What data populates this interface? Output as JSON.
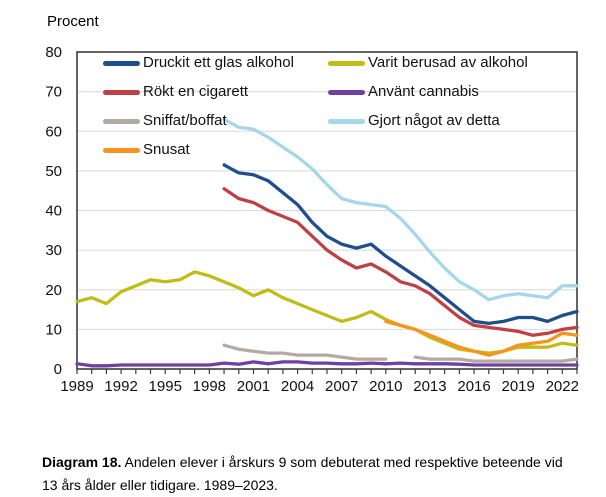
{
  "caption": {
    "label": "Diagram 18.",
    "text": " Andelen elever i årskurs 9 som debuterat med respektive beteende vid 13 års ålder eller tidigare. 1989–2023."
  },
  "colors": {
    "plot_border": "#3d3d3d",
    "gridline": "#d8d8d8",
    "axis_text": "#111111"
  },
  "chart_data": {
    "type": "line",
    "title": "",
    "xlabel": "",
    "ylabel": "Procent",
    "ylim": [
      0,
      80
    ],
    "y_ticks": [
      0,
      10,
      20,
      30,
      40,
      50,
      60,
      70,
      80
    ],
    "x": [
      1989,
      1990,
      1991,
      1992,
      1993,
      1994,
      1995,
      1996,
      1997,
      1998,
      1999,
      2000,
      2001,
      2002,
      2003,
      2004,
      2005,
      2006,
      2007,
      2008,
      2009,
      2010,
      2011,
      2012,
      2013,
      2014,
      2015,
      2016,
      2017,
      2018,
      2019,
      2020,
      2021,
      2022,
      2023
    ],
    "x_tick_labels": [
      1989,
      1992,
      1995,
      1998,
      2001,
      2004,
      2007,
      2010,
      2013,
      2016,
      2019,
      2022
    ],
    "grid": true,
    "legend_position": "top-left-inside",
    "series": [
      {
        "key": "druckit",
        "name": "Druckit ett glas alkohol",
        "color": "#1f4e8c",
        "values": [
          null,
          null,
          null,
          null,
          null,
          null,
          null,
          null,
          null,
          null,
          51.5,
          49.5,
          49,
          47.5,
          44.5,
          41.5,
          37,
          33.5,
          31.5,
          30.5,
          31.5,
          28.5,
          26,
          23.5,
          21,
          18,
          15,
          12,
          11.5,
          12,
          13,
          13,
          12,
          13.5,
          14.5
        ]
      },
      {
        "key": "rokt",
        "name": "Rökt en cigarett",
        "color": "#bf4045",
        "values": [
          null,
          null,
          null,
          null,
          null,
          null,
          null,
          null,
          null,
          null,
          45.5,
          43,
          42,
          40,
          38.5,
          37,
          33.5,
          30,
          27.5,
          25.5,
          26.5,
          24.5,
          22,
          21,
          19,
          16,
          13,
          11,
          10.5,
          10,
          9.5,
          8.5,
          9,
          10,
          10.5
        ]
      },
      {
        "key": "sniffat",
        "name": "Sniffat/boffat",
        "color": "#b3aaa2",
        "values": [
          null,
          null,
          null,
          null,
          null,
          null,
          null,
          null,
          null,
          null,
          6,
          5,
          4.5,
          4,
          4,
          3.5,
          3.5,
          3.5,
          3,
          2.5,
          2.5,
          2.5,
          null,
          3,
          2.5,
          2.5,
          2.5,
          2,
          2,
          2,
          2,
          2,
          2,
          2,
          2.5
        ]
      },
      {
        "key": "snusat",
        "name": "Snusat",
        "color": "#f7941d",
        "values": [
          null,
          null,
          null,
          null,
          null,
          null,
          null,
          null,
          null,
          null,
          null,
          null,
          null,
          null,
          null,
          null,
          null,
          null,
          null,
          null,
          null,
          12,
          11,
          10,
          8.5,
          7,
          5.5,
          4.5,
          3.5,
          4.5,
          6,
          6.5,
          7,
          9,
          8.5
        ]
      },
      {
        "key": "berusad",
        "name": "Varit berusad av alkohol",
        "color": "#c0bd19",
        "values": [
          17,
          18,
          16.5,
          19.5,
          21,
          22.5,
          22,
          22.5,
          24.5,
          23.5,
          22,
          20.5,
          18.5,
          20,
          18,
          16.5,
          15,
          13.5,
          12,
          13,
          14.5,
          12.5,
          11,
          10,
          8,
          6.5,
          5,
          4.5,
          4,
          4.5,
          5.5,
          5.5,
          5.5,
          6.5,
          6
        ]
      },
      {
        "key": "cannabis",
        "name": "Använt cannabis",
        "color": "#7040a0",
        "values": [
          1.3,
          0.8,
          0.8,
          1,
          1,
          1,
          1,
          1,
          1,
          1,
          1.5,
          1.2,
          1.8,
          1.3,
          1.8,
          1.8,
          1.5,
          1.5,
          1.3,
          1.3,
          1.5,
          1.3,
          1.5,
          1.3,
          1.3,
          1.3,
          1.2,
          1,
          1,
          1,
          1,
          1,
          1,
          1,
          1
        ]
      },
      {
        "key": "gjort",
        "name": "Gjort något av detta",
        "color": "#a5d7e8",
        "values": [
          null,
          null,
          null,
          null,
          null,
          null,
          null,
          null,
          null,
          null,
          63,
          61,
          60.5,
          58.5,
          56,
          53.5,
          50.5,
          46.5,
          43,
          42,
          41.5,
          41,
          38,
          34,
          29.5,
          25.5,
          22,
          20,
          17.5,
          18.5,
          19,
          18.5,
          18,
          21,
          21
        ]
      }
    ],
    "legend_columns": [
      [
        0,
        1,
        2,
        3
      ],
      [
        4,
        5,
        6
      ]
    ],
    "draw_order": [
      6,
      2,
      5,
      4,
      3,
      1,
      0
    ]
  }
}
